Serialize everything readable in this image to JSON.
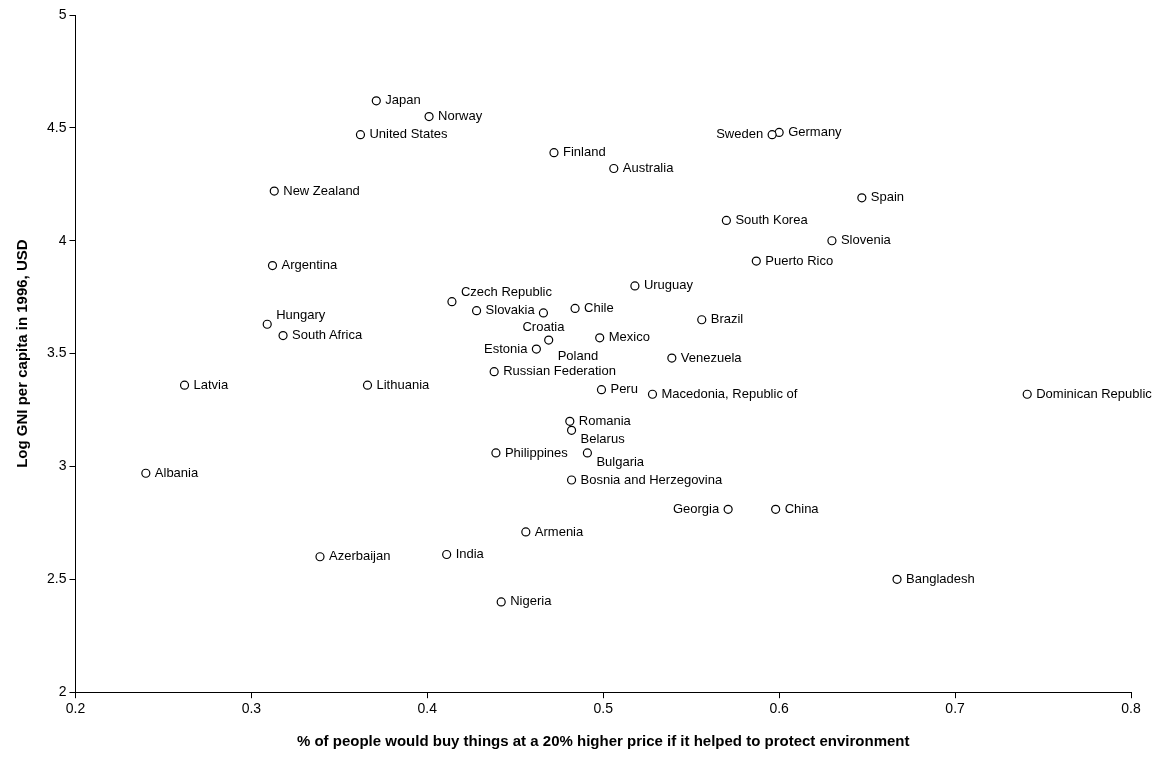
{
  "chart_data": {
    "type": "scatter",
    "xlabel": "% of people would buy things at a 20% higher price if it helped to protect environment",
    "ylabel": "Log GNI per capita in 1996, USD",
    "xlim": [
      0.2,
      0.8
    ],
    "xticks": [
      0.2,
      0.3,
      0.4,
      0.5,
      0.6,
      0.7,
      0.8
    ],
    "ylim": [
      2,
      5
    ],
    "yticks": [
      2,
      2.5,
      3,
      3.5,
      4,
      4.5,
      5
    ],
    "grid": false,
    "legend": false,
    "marker": "circle",
    "series": [
      {
        "color": "#000000",
        "x": [
          0.371,
          0.401,
          0.362,
          0.472,
          0.506,
          0.6,
          0.596,
          0.313,
          0.647,
          0.57,
          0.63,
          0.587,
          0.312,
          0.518,
          0.414,
          0.428,
          0.484,
          0.466,
          0.556,
          0.309,
          0.318,
          0.469,
          0.498,
          0.462,
          0.539,
          0.438,
          0.262,
          0.366,
          0.499,
          0.528,
          0.741,
          0.481,
          0.482,
          0.439,
          0.491,
          0.24,
          0.482,
          0.571,
          0.598,
          0.456,
          0.339,
          0.411,
          0.667,
          0.442
        ],
        "values": [
          4.62,
          4.55,
          4.47,
          4.39,
          4.32,
          4.48,
          4.47,
          4.22,
          4.19,
          4.09,
          4.0,
          3.91,
          3.89,
          3.8,
          3.73,
          3.69,
          3.7,
          3.68,
          3.65,
          3.63,
          3.58,
          3.56,
          3.57,
          3.52,
          3.48,
          3.42,
          3.36,
          3.36,
          3.34,
          3.32,
          3.32,
          3.2,
          3.16,
          3.06,
          3.06,
          2.97,
          2.94,
          2.81,
          2.81,
          2.71,
          2.6,
          2.61,
          2.5,
          2.4
        ]
      }
    ],
    "annotations": [
      {
        "text": "Japan",
        "x": 0.371,
        "y": 4.62
      },
      {
        "text": "Norway",
        "x": 0.401,
        "y": 4.55
      },
      {
        "text": "United States",
        "x": 0.362,
        "y": 4.47
      },
      {
        "text": "Finland",
        "x": 0.472,
        "y": 4.39
      },
      {
        "text": "Australia",
        "x": 0.506,
        "y": 4.32
      },
      {
        "text": "Germany",
        "x": 0.6,
        "y": 4.48
      },
      {
        "text": "Sweden",
        "x": 0.596,
        "y": 4.47
      },
      {
        "text": "New Zealand",
        "x": 0.313,
        "y": 4.22
      },
      {
        "text": "Spain",
        "x": 0.647,
        "y": 4.19
      },
      {
        "text": "South Korea",
        "x": 0.57,
        "y": 4.09
      },
      {
        "text": "Slovenia",
        "x": 0.63,
        "y": 4.0
      },
      {
        "text": "Puerto Rico",
        "x": 0.587,
        "y": 3.91
      },
      {
        "text": "Argentina",
        "x": 0.312,
        "y": 3.89
      },
      {
        "text": "Uruguay",
        "x": 0.518,
        "y": 3.8
      },
      {
        "text": "Czech Republic",
        "x": 0.414,
        "y": 3.73
      },
      {
        "text": "Slovakia",
        "x": 0.428,
        "y": 3.69
      },
      {
        "text": "Chile",
        "x": 0.484,
        "y": 3.7
      },
      {
        "text": "Croatia",
        "x": 0.466,
        "y": 3.68
      },
      {
        "text": "Brazil",
        "x": 0.556,
        "y": 3.65
      },
      {
        "text": "Hungary",
        "x": 0.309,
        "y": 3.63
      },
      {
        "text": "South Africa",
        "x": 0.318,
        "y": 3.58
      },
      {
        "text": "Poland",
        "x": 0.469,
        "y": 3.56
      },
      {
        "text": "Mexico",
        "x": 0.498,
        "y": 3.57
      },
      {
        "text": "Estonia",
        "x": 0.462,
        "y": 3.52
      },
      {
        "text": "Venezuela",
        "x": 0.539,
        "y": 3.48
      },
      {
        "text": "Russian Federation",
        "x": 0.438,
        "y": 3.42
      },
      {
        "text": "Latvia",
        "x": 0.262,
        "y": 3.36
      },
      {
        "text": "Lithuania",
        "x": 0.366,
        "y": 3.36
      },
      {
        "text": "Peru",
        "x": 0.499,
        "y": 3.34
      },
      {
        "text": "Macedonia, Republic of",
        "x": 0.528,
        "y": 3.32
      },
      {
        "text": "Dominican Republic",
        "x": 0.741,
        "y": 3.32
      },
      {
        "text": "Romania",
        "x": 0.481,
        "y": 3.2
      },
      {
        "text": "Belarus",
        "x": 0.482,
        "y": 3.16
      },
      {
        "text": "Philippines",
        "x": 0.439,
        "y": 3.06
      },
      {
        "text": "Bulgaria",
        "x": 0.491,
        "y": 3.06
      },
      {
        "text": "Albania",
        "x": 0.24,
        "y": 2.97
      },
      {
        "text": "Bosnia and Herzegovina",
        "x": 0.482,
        "y": 2.94
      },
      {
        "text": "Georgia",
        "x": 0.571,
        "y": 2.81
      },
      {
        "text": "China",
        "x": 0.598,
        "y": 2.81
      },
      {
        "text": "Armenia",
        "x": 0.456,
        "y": 2.71
      },
      {
        "text": "Azerbaijan",
        "x": 0.339,
        "y": 2.6
      },
      {
        "text": "India",
        "x": 0.411,
        "y": 2.61
      },
      {
        "text": "Bangladesh",
        "x": 0.667,
        "y": 2.5
      },
      {
        "text": "Nigeria",
        "x": 0.442,
        "y": 2.4
      }
    ]
  }
}
